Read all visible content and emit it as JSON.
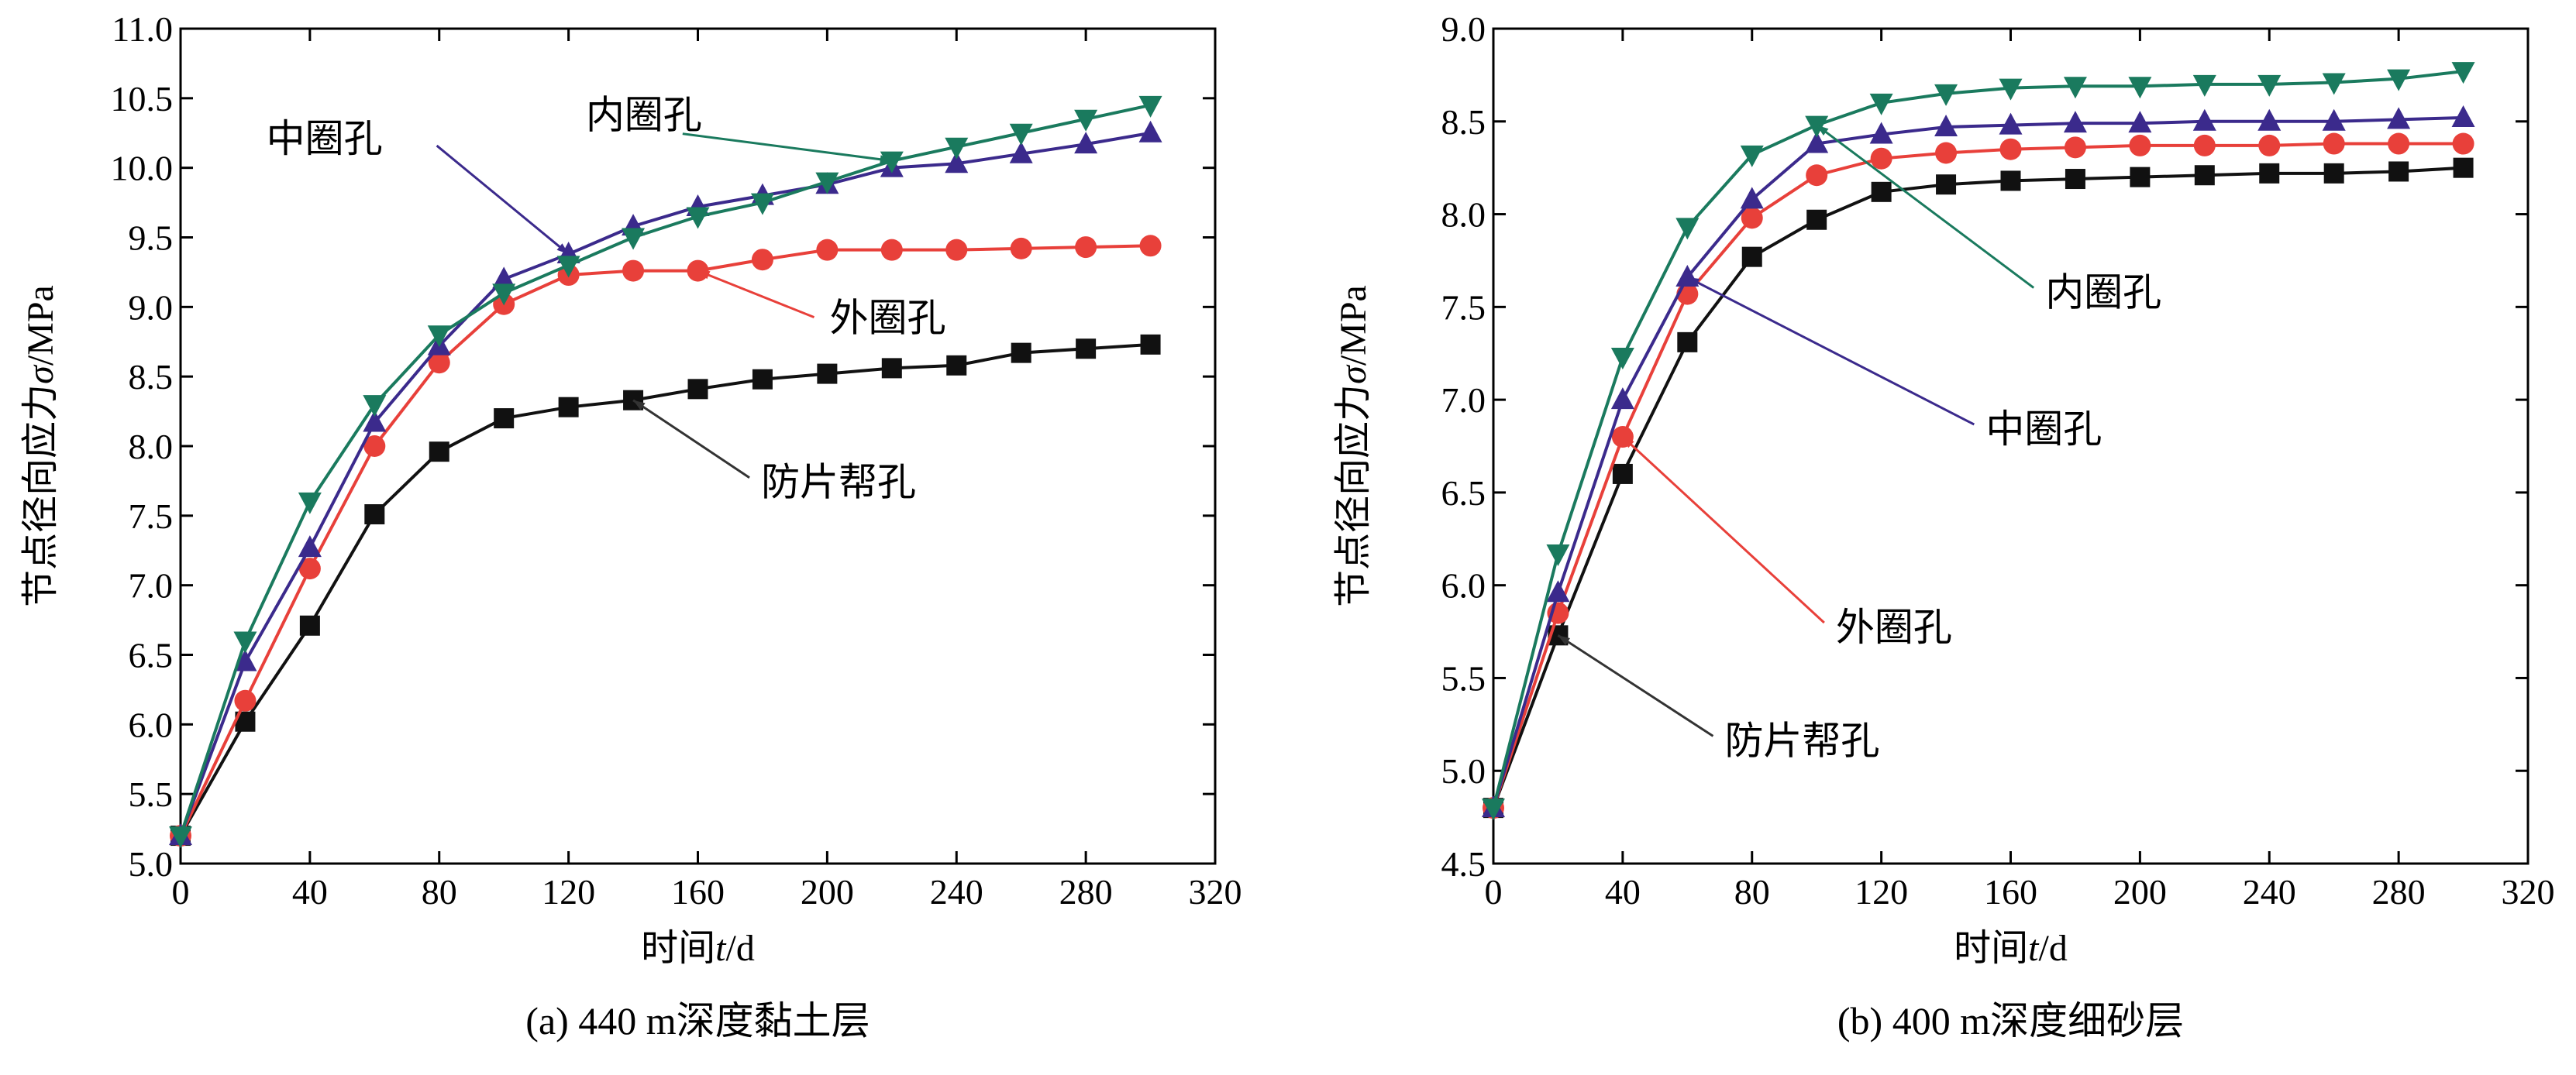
{
  "chart_data": [
    {
      "type": "line",
      "caption": "(a) 440 m深度黏土层",
      "xlabel_prefix": "时间",
      "xlabel_var": "t",
      "xlabel_unit": "/d",
      "ylabel_prefix": "节点径向应力",
      "ylabel_var": "σ",
      "ylabel_unit": "/MPa",
      "xlim": [
        0,
        320
      ],
      "ylim": [
        5.0,
        11.0
      ],
      "xticks": [
        0,
        40,
        80,
        120,
        160,
        200,
        240,
        280,
        320
      ],
      "yticks": [
        5.0,
        5.5,
        6.0,
        6.5,
        7.0,
        7.5,
        8.0,
        8.5,
        9.0,
        9.5,
        10.0,
        10.5,
        11.0
      ],
      "x": [
        0,
        20,
        40,
        60,
        80,
        100,
        120,
        140,
        160,
        180,
        200,
        220,
        240,
        260,
        280,
        300
      ],
      "series": [
        {
          "name": "内圈孔",
          "marker": "triangle-down",
          "color": "#1a7a5e",
          "values": [
            5.2,
            6.6,
            7.6,
            8.3,
            8.8,
            9.1,
            9.3,
            9.5,
            9.65,
            9.75,
            9.9,
            10.05,
            10.15,
            10.25,
            10.35,
            10.45
          ]
        },
        {
          "name": "中圈孔",
          "marker": "triangle-up",
          "color": "#3b2a8c",
          "values": [
            5.2,
            6.45,
            7.27,
            8.17,
            8.72,
            9.2,
            9.38,
            9.58,
            9.72,
            9.8,
            9.88,
            10.0,
            10.03,
            10.1,
            10.17,
            10.25
          ]
        },
        {
          "name": "外圈孔",
          "marker": "circle",
          "color": "#e8403a",
          "values": [
            5.2,
            6.17,
            7.12,
            8.0,
            8.6,
            9.02,
            9.23,
            9.26,
            9.26,
            9.34,
            9.41,
            9.41,
            9.41,
            9.42,
            9.43,
            9.44
          ]
        },
        {
          "name": "防片帮孔",
          "marker": "square",
          "color": "#111111",
          "values": [
            5.2,
            6.02,
            6.71,
            7.51,
            7.96,
            8.2,
            8.28,
            8.33,
            8.41,
            8.48,
            8.52,
            8.56,
            8.58,
            8.67,
            8.7,
            8.73
          ]
        }
      ],
      "annotations": [
        {
          "text": "内圈孔",
          "series": "内圈孔",
          "at_x": 220
        },
        {
          "text": "中圈孔",
          "series": "中圈孔",
          "at_x": 120
        },
        {
          "text": "外圈孔",
          "series": "外圈孔",
          "at_x": 160
        },
        {
          "text": "防片帮孔",
          "series": "防片帮孔",
          "at_x": 140
        }
      ]
    },
    {
      "type": "line",
      "caption": "(b) 400 m深度细砂层",
      "xlabel_prefix": "时间",
      "xlabel_var": "t",
      "xlabel_unit": "/d",
      "ylabel_prefix": "节点径向应力",
      "ylabel_var": "σ",
      "ylabel_unit": "/MPa",
      "xlim": [
        0,
        320
      ],
      "ylim": [
        4.5,
        9.0
      ],
      "xticks": [
        0,
        40,
        80,
        120,
        160,
        200,
        240,
        280,
        320
      ],
      "yticks": [
        4.5,
        5.0,
        5.5,
        6.0,
        6.5,
        7.0,
        7.5,
        8.0,
        8.5,
        9.0
      ],
      "x": [
        0,
        20,
        40,
        60,
        80,
        100,
        120,
        140,
        160,
        180,
        200,
        220,
        240,
        260,
        280,
        300
      ],
      "series": [
        {
          "name": "内圈孔",
          "marker": "triangle-down",
          "color": "#1a7a5e",
          "values": [
            4.8,
            6.17,
            7.23,
            7.93,
            8.32,
            8.48,
            8.6,
            8.65,
            8.68,
            8.69,
            8.69,
            8.7,
            8.7,
            8.71,
            8.73,
            8.77
          ]
        },
        {
          "name": "中圈孔",
          "marker": "triangle-up",
          "color": "#3b2a8c",
          "values": [
            4.8,
            5.96,
            7.0,
            7.66,
            8.08,
            8.38,
            8.43,
            8.47,
            8.48,
            8.49,
            8.49,
            8.5,
            8.5,
            8.5,
            8.51,
            8.52
          ]
        },
        {
          "name": "外圈孔",
          "marker": "circle",
          "color": "#e8403a",
          "values": [
            4.8,
            5.85,
            6.8,
            7.57,
            7.98,
            8.21,
            8.3,
            8.33,
            8.35,
            8.36,
            8.37,
            8.37,
            8.37,
            8.38,
            8.38,
            8.38
          ]
        },
        {
          "name": "防片帮孔",
          "marker": "square",
          "color": "#111111",
          "values": [
            4.8,
            5.73,
            6.6,
            7.31,
            7.77,
            7.97,
            8.12,
            8.16,
            8.18,
            8.19,
            8.2,
            8.21,
            8.22,
            8.22,
            8.23,
            8.25
          ]
        }
      ],
      "annotations": [
        {
          "text": "内圈孔",
          "series": "内圈孔",
          "at_x": 100
        },
        {
          "text": "中圈孔",
          "series": "中圈孔",
          "at_x": 60
        },
        {
          "text": "外圈孔",
          "series": "外圈孔",
          "at_x": 40
        },
        {
          "text": "防片帮孔",
          "series": "防片帮孔",
          "at_x": 20
        }
      ]
    }
  ]
}
